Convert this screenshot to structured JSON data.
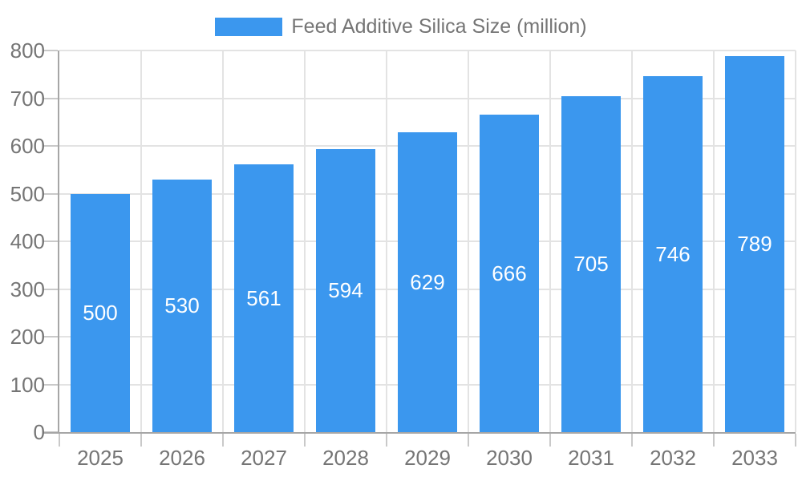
{
  "legend": {
    "label": "Feed Additive Silica Size (million)"
  },
  "chart_data": {
    "type": "bar",
    "title": "Feed Additive Silica Size (million)",
    "categories": [
      "2025",
      "2026",
      "2027",
      "2028",
      "2029",
      "2030",
      "2031",
      "2032",
      "2033"
    ],
    "values": [
      500,
      530,
      561,
      594,
      629,
      666,
      705,
      746,
      789
    ],
    "xlabel": "",
    "ylabel": "",
    "ylim": [
      0,
      800
    ],
    "yticks": [
      0,
      100,
      200,
      300,
      400,
      500,
      600,
      700,
      800
    ],
    "grid": true,
    "legend_position": "top-center",
    "bar_value_labels_inside": true,
    "colors": {
      "bar": "#3B97EE",
      "grid": "#E3E3E3",
      "axis": "#A6A6A6",
      "tick": "#C9C9C9",
      "axis_label": "#757575",
      "value_label": "#FFFFFF",
      "background": "#FFFFFF"
    }
  }
}
